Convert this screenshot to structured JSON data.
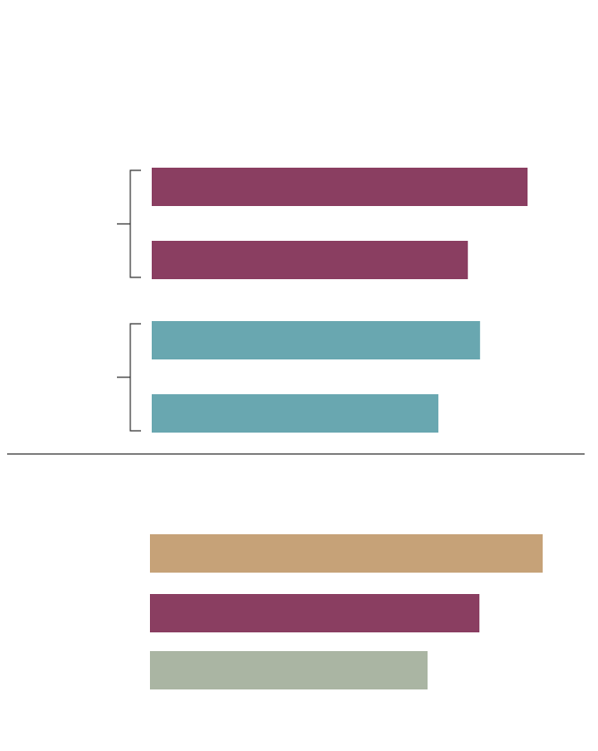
{
  "chart_data": [
    {
      "type": "bar",
      "orientation": "horizontal",
      "grid": false,
      "xlim": [
        0,
        100
      ],
      "groups": [
        {
          "color": "#8a3e61",
          "values": [
            95.7,
            80.5
          ]
        },
        {
          "color": "#69a7b0",
          "values": [
            83.6,
            73.0
          ]
        }
      ]
    },
    {
      "type": "bar",
      "orientation": "horizontal",
      "grid": false,
      "xlim": [
        0,
        100
      ],
      "values": [
        100,
        83.9,
        70.7
      ],
      "colors": [
        "#c6a278",
        "#8a3e61",
        "#aab5a3"
      ]
    }
  ],
  "colors": {
    "bracket": "#333333",
    "divider": "#333333"
  }
}
